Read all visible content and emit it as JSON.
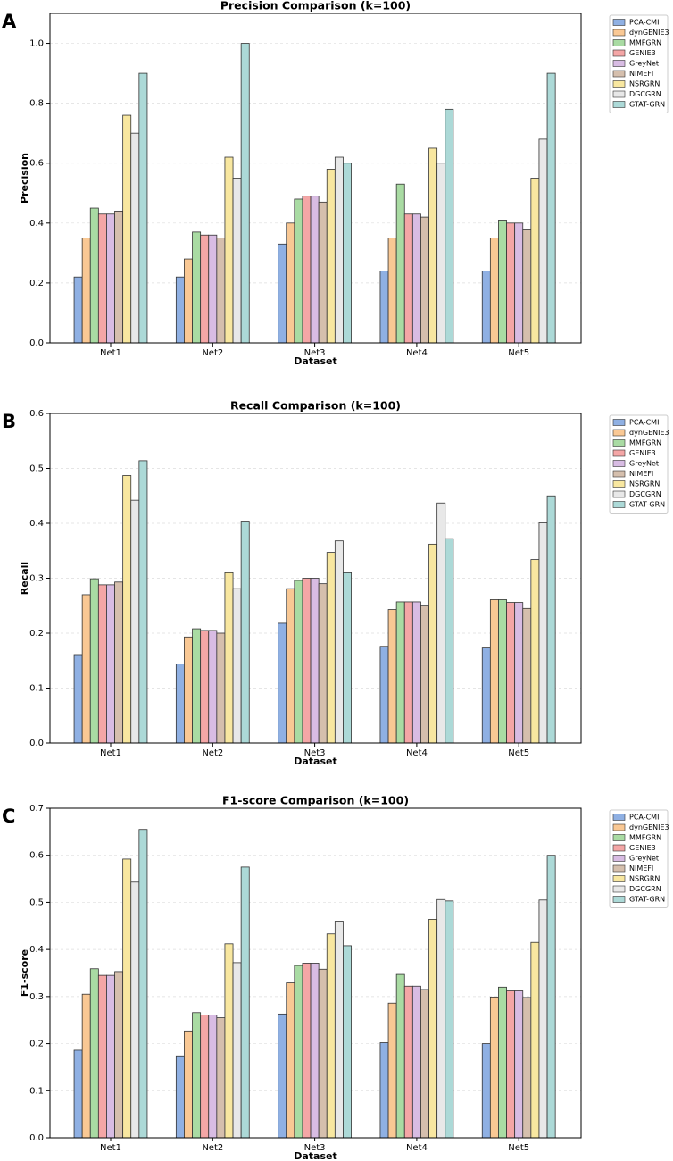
{
  "chart_data": [
    {
      "type": "bar",
      "label": "A",
      "title": "Precision Comparison (k=100)",
      "x_label": "Dataset",
      "y_label": "Precision",
      "categories": [
        "Net1",
        "Net2",
        "Net3",
        "Net4",
        "Net5"
      ],
      "ylim": [
        0,
        1.1
      ],
      "yticks": [
        {
          "value": 0,
          "label": "0.0"
        },
        0.2,
        0.4,
        0.6,
        0.8,
        {
          "value": 1,
          "label": "1.0"
        }
      ],
      "grid": true,
      "series": [
        {
          "name": "PCA-CMI",
          "color": "#8fb0e3",
          "values": [
            0.22,
            0.22,
            0.33,
            0.24,
            0.24
          ]
        },
        {
          "name": "dynGENIE3",
          "color": "#f9c894",
          "values": [
            0.35,
            0.28,
            0.4,
            0.35,
            0.35
          ]
        },
        {
          "name": "MMFGRN",
          "color": "#a9dba3",
          "values": [
            0.45,
            0.37,
            0.48,
            0.53,
            0.41
          ]
        },
        {
          "name": "GENIE3",
          "color": "#f4a6a6",
          "values": [
            0.43,
            0.36,
            0.49,
            0.43,
            0.4
          ]
        },
        {
          "name": "GreyNet",
          "color": "#d8bce3",
          "values": [
            0.43,
            0.36,
            0.49,
            0.43,
            0.4
          ]
        },
        {
          "name": "NIMEFI",
          "color": "#d5bfad",
          "values": [
            0.44,
            0.35,
            0.47,
            0.42,
            0.38
          ]
        },
        {
          "name": "NSRGRN",
          "color": "#f8e7a0",
          "values": [
            0.76,
            0.62,
            0.58,
            0.65,
            0.55
          ]
        },
        {
          "name": "DGCGRN",
          "color": "#e8e8e8",
          "values": [
            0.7,
            0.55,
            0.62,
            0.6,
            0.68
          ]
        },
        {
          "name": "GTAT-GRN",
          "color": "#acd9d7",
          "values": [
            0.9,
            1.0,
            0.6,
            0.78,
            0.9
          ]
        }
      ]
    },
    {
      "type": "bar",
      "label": "B",
      "title": "Recall Comparison (k=100)",
      "x_label": "Dataset",
      "y_label": "Recall",
      "categories": [
        "Net1",
        "Net2",
        "Net3",
        "Net4",
        "Net5"
      ],
      "ylim": [
        0,
        0.6
      ],
      "yticks": [
        {
          "value": 0,
          "label": "0.0"
        },
        0.1,
        0.2,
        0.3,
        0.4,
        0.5,
        0.6
      ],
      "grid": true,
      "series": [
        {
          "name": "PCA-CMI",
          "color": "#8fb0e3",
          "values": [
            0.161,
            0.144,
            0.218,
            0.176,
            0.173
          ]
        },
        {
          "name": "dynGENIE3",
          "color": "#f9c894",
          "values": [
            0.27,
            0.193,
            0.281,
            0.243,
            0.261
          ]
        },
        {
          "name": "MMFGRN",
          "color": "#a9dba3",
          "values": [
            0.299,
            0.208,
            0.296,
            0.257,
            0.261
          ]
        },
        {
          "name": "GENIE3",
          "color": "#f4a6a6",
          "values": [
            0.288,
            0.205,
            0.3,
            0.257,
            0.256
          ]
        },
        {
          "name": "GreyNet",
          "color": "#d8bce3",
          "values": [
            0.288,
            0.205,
            0.3,
            0.257,
            0.256
          ]
        },
        {
          "name": "NIMEFI",
          "color": "#d5bfad",
          "values": [
            0.293,
            0.2,
            0.29,
            0.251,
            0.245
          ]
        },
        {
          "name": "NSRGRN",
          "color": "#f8e7a0",
          "values": [
            0.487,
            0.31,
            0.347,
            0.362,
            0.334
          ]
        },
        {
          "name": "DGCGRN",
          "color": "#e8e8e8",
          "values": [
            0.442,
            0.281,
            0.368,
            0.437,
            0.401
          ]
        },
        {
          "name": "GTAT-GRN",
          "color": "#acd9d7",
          "values": [
            0.514,
            0.404,
            0.31,
            0.372,
            0.45
          ]
        }
      ]
    },
    {
      "type": "bar",
      "label": "C",
      "title": "F1-score Comparison (k=100)",
      "x_label": "Dataset",
      "y_label": "F1-score",
      "categories": [
        "Net1",
        "Net2",
        "Net3",
        "Net4",
        "Net5"
      ],
      "ylim": [
        0,
        0.7
      ],
      "yticks": [
        {
          "value": 0,
          "label": "0.0"
        },
        0.1,
        0.2,
        0.3,
        0.4,
        0.5,
        0.6,
        0.7
      ],
      "grid": true,
      "series": [
        {
          "name": "PCA-CMI",
          "color": "#8fb0e3",
          "values": [
            0.186,
            0.174,
            0.263,
            0.202,
            0.2
          ]
        },
        {
          "name": "dynGENIE3",
          "color": "#f9c894",
          "values": [
            0.305,
            0.227,
            0.329,
            0.286,
            0.299
          ]
        },
        {
          "name": "MMFGRN",
          "color": "#a9dba3",
          "values": [
            0.359,
            0.266,
            0.366,
            0.347,
            0.32
          ]
        },
        {
          "name": "GENIE3",
          "color": "#f4a6a6",
          "values": [
            0.345,
            0.261,
            0.371,
            0.322,
            0.312
          ]
        },
        {
          "name": "GreyNet",
          "color": "#d8bce3",
          "values": [
            0.345,
            0.261,
            0.371,
            0.322,
            0.312
          ]
        },
        {
          "name": "NIMEFI",
          "color": "#d5bfad",
          "values": [
            0.353,
            0.255,
            0.358,
            0.315,
            0.298
          ]
        },
        {
          "name": "NSRGRN",
          "color": "#f8e7a0",
          "values": [
            0.592,
            0.412,
            0.433,
            0.464,
            0.415
          ]
        },
        {
          "name": "DGCGRN",
          "color": "#e8e8e8",
          "values": [
            0.543,
            0.372,
            0.46,
            0.506,
            0.505
          ]
        },
        {
          "name": "GTAT-GRN",
          "color": "#acd9d7",
          "values": [
            0.655,
            0.575,
            0.408,
            0.503,
            0.6
          ]
        }
      ]
    }
  ]
}
